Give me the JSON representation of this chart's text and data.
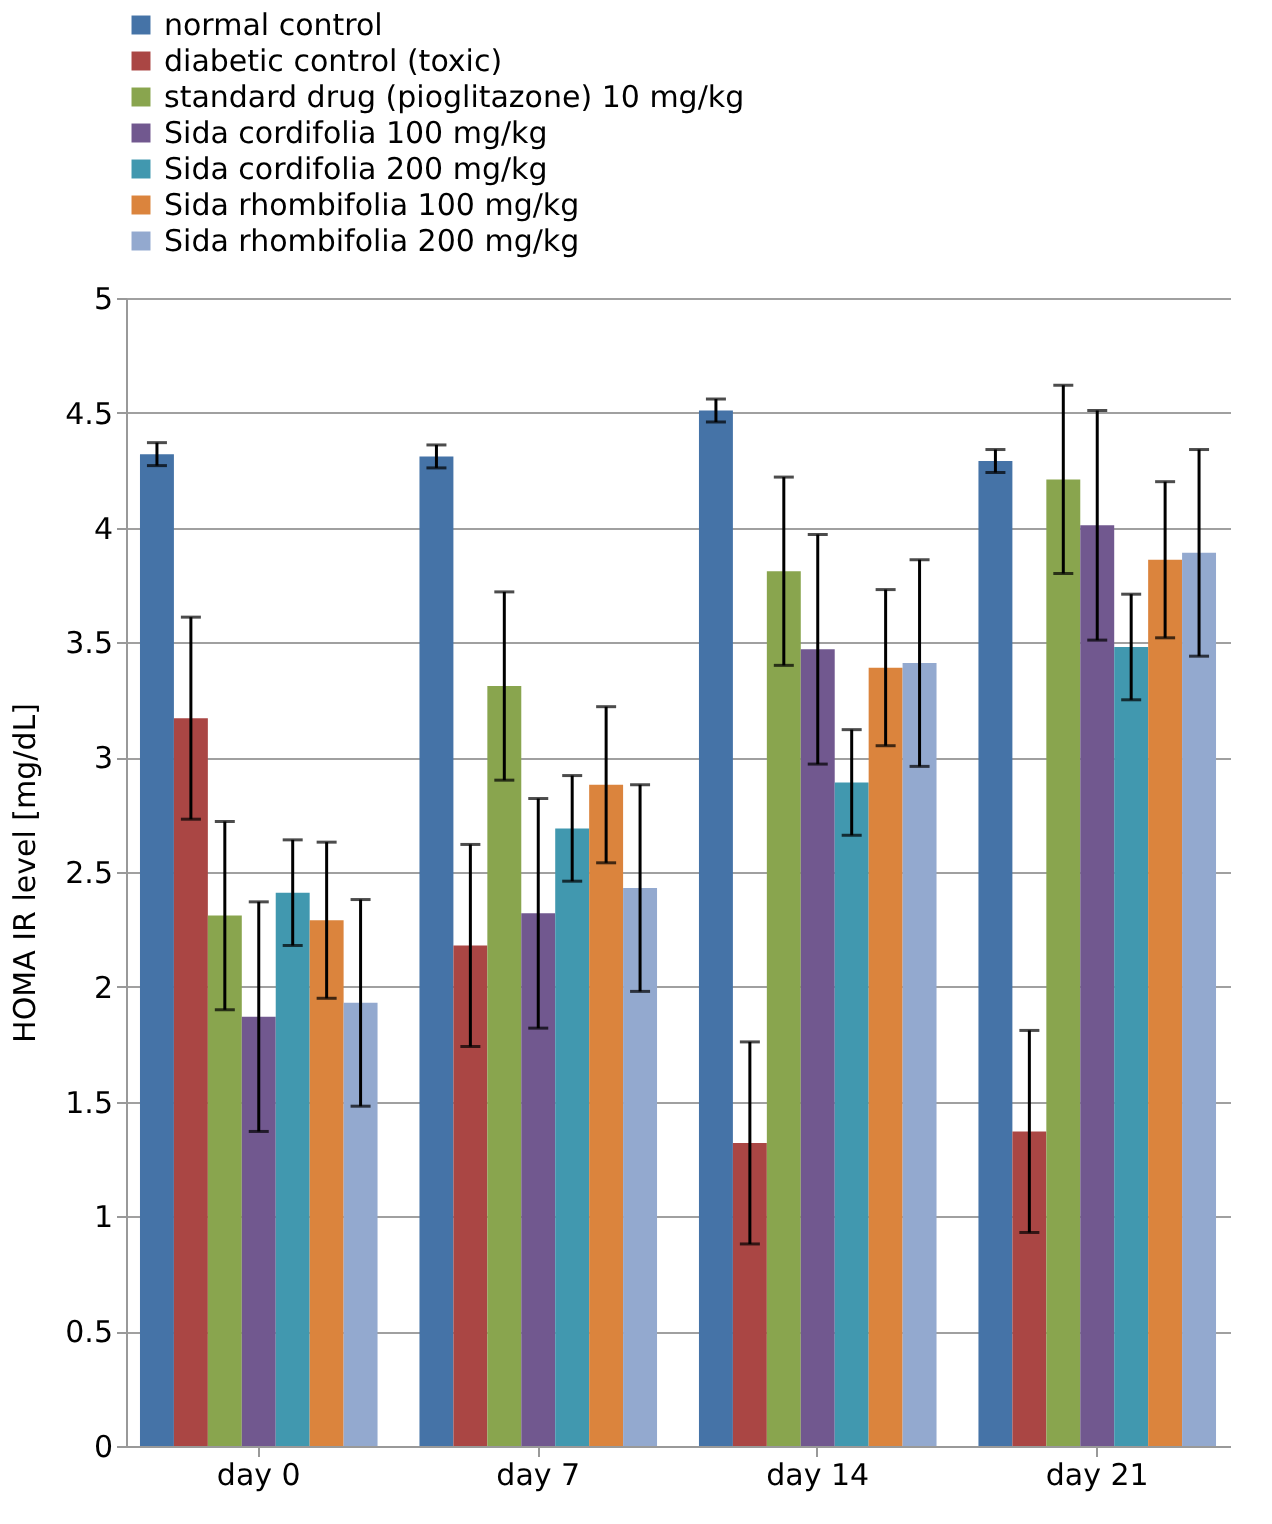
{
  "chart_data": {
    "type": "bar",
    "ylabel": "HOMA IR level [mg/dL]",
    "categories": [
      "day 0",
      "day 7",
      "day 14",
      "day 21"
    ],
    "series": [
      {
        "name": "normal control",
        "color": "#4573a7",
        "values": [
          4.32,
          4.31,
          4.51,
          4.29
        ],
        "errors": [
          0.05,
          0.05,
          0.05,
          0.05
        ]
      },
      {
        "name": "diabetic control (toxic)",
        "color": "#aa4644",
        "values": [
          3.17,
          2.18,
          1.32,
          1.37
        ],
        "errors": [
          0.44,
          0.44,
          0.44,
          0.44
        ]
      },
      {
        "name": "standard drug (pioglitazone) 10 mg/kg",
        "color": "#89a54e",
        "values": [
          2.31,
          3.31,
          3.81,
          4.21
        ],
        "errors": [
          0.41,
          0.41,
          0.41,
          0.41
        ]
      },
      {
        "name": "Sida cordifolia 100 mg/kg",
        "color": "#71588f",
        "values": [
          1.87,
          2.32,
          3.47,
          4.01
        ],
        "errors": [
          0.5,
          0.5,
          0.5,
          0.5
        ]
      },
      {
        "name": "Sida cordifolia 200 mg/kg",
        "color": "#4198af",
        "values": [
          2.41,
          2.69,
          2.89,
          3.48
        ],
        "errors": [
          0.23,
          0.23,
          0.23,
          0.23
        ]
      },
      {
        "name": "Sida rhombifolia 100 mg/kg",
        "color": "#db843d",
        "values": [
          2.29,
          2.88,
          3.39,
          3.86
        ],
        "errors": [
          0.34,
          0.34,
          0.34,
          0.34
        ]
      },
      {
        "name": "Sida rhombifolia 200 mg/kg",
        "color": "#93a9cf",
        "values": [
          1.93,
          2.43,
          3.41,
          3.89
        ],
        "errors": [
          0.45,
          0.45,
          0.45,
          0.45
        ]
      }
    ],
    "ylim": [
      0,
      5
    ],
    "yticks": [
      0,
      0.5,
      1,
      1.5,
      2,
      2.5,
      3,
      3.5,
      4,
      4.5,
      5
    ],
    "grid": "y",
    "legend": "top left"
  }
}
